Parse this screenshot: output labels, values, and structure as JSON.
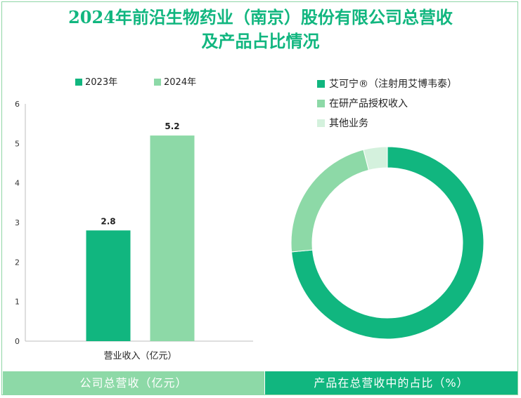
{
  "title_line1": "2024年前沿生物药业（南京）股份有限公司总营收",
  "title_line2": "及产品占比情况",
  "chart_data": [
    {
      "type": "bar",
      "title": "公司总营收（亿元）",
      "categories": [
        "营业收入（亿元）"
      ],
      "series": [
        {
          "name": "2023年",
          "values": [
            2.8
          ],
          "color": "#11b67f"
        },
        {
          "name": "2024年",
          "values": [
            5.2
          ],
          "color": "#8dd9a7"
        }
      ],
      "ylim": [
        0,
        6
      ],
      "yticks": [
        "0",
        "1",
        "2",
        "3",
        "4",
        "5",
        "6"
      ],
      "data_labels": [
        "2.8",
        "5.2"
      ],
      "legend": "top"
    },
    {
      "type": "pie",
      "title": "产品在总营收中的占比（%）",
      "labels": [
        "艾可宁®（注射用艾博韦泰）",
        "在研产品授权收入",
        "其他业务"
      ],
      "values": [
        73.5,
        22.5,
        4.0
      ],
      "colors": [
        "#11b67f",
        "#8dd9a7",
        "#d4f1dd"
      ],
      "legend": "top-left"
    }
  ]
}
